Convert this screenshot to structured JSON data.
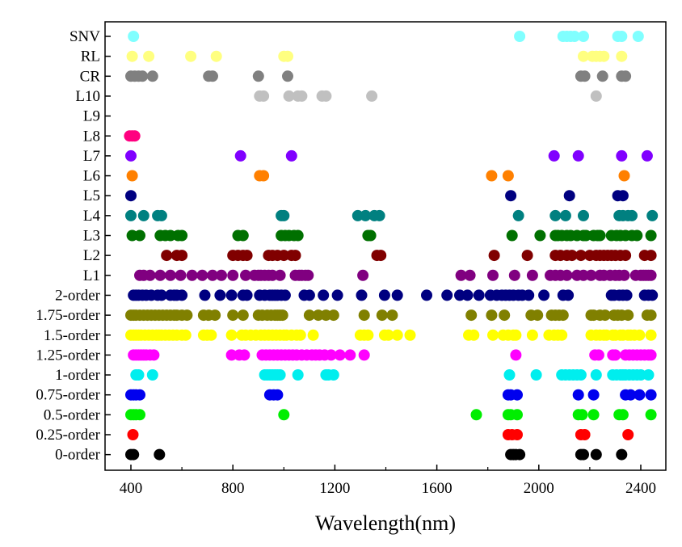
{
  "chart_data": {
    "type": "scatter",
    "title": "",
    "xlabel": "Wavelength(nm)",
    "ylabel": "",
    "xlim": [
      300,
      2460
    ],
    "xticks": [
      400,
      800,
      1200,
      1600,
      2000,
      2400
    ],
    "grid": false,
    "legend": "none",
    "categories": [
      "0-order",
      "0.25-order",
      "0.5-order",
      "0.75-order",
      "1-order",
      "1.25-order",
      "1.5-order",
      "1.75-order",
      "2-order",
      "L1",
      "L2",
      "L3",
      "L4",
      "L5",
      "L6",
      "L7",
      "L8",
      "L9",
      "L10",
      "CR",
      "RL",
      "SNV"
    ],
    "series": [
      {
        "category": "0-order",
        "color": "#000000",
        "x": [
          400,
          410,
          512,
          1890,
          1900,
          1910,
          1925,
          2165,
          2175,
          2225,
          2325
        ]
      },
      {
        "category": "0.25-order",
        "color": "#ff0000",
        "x": [
          408,
          1880,
          1895,
          1915,
          2165,
          2180,
          2350
        ]
      },
      {
        "category": "0.5-order",
        "color": "#00ee00",
        "x": [
          400,
          410,
          420,
          435,
          1000,
          1755,
          1880,
          1890,
          1915,
          2155,
          2170,
          2215,
          2315,
          2330,
          2440
        ]
      },
      {
        "category": "0.75-order",
        "color": "#0000ee",
        "x": [
          400,
          410,
          420,
          435,
          945,
          960,
          975,
          1880,
          1890,
          1915,
          2155,
          2215,
          2340,
          2360,
          2395,
          2440
        ]
      },
      {
        "category": "1-order",
        "color": "#00eeee",
        "x": [
          420,
          430,
          485,
          925,
          935,
          945,
          955,
          965,
          975,
          985,
          1055,
          1165,
          1175,
          1195,
          1885,
          1990,
          2090,
          2105,
          2120,
          2135,
          2150,
          2165,
          2225,
          2290,
          2305,
          2320,
          2330,
          2340,
          2355,
          2370,
          2385,
          2400,
          2430
        ]
      },
      {
        "category": "1.25-order",
        "color": "#ff00ff",
        "x": [
          410,
          420,
          430,
          440,
          450,
          460,
          475,
          490,
          795,
          825,
          845,
          915,
          930,
          945,
          960,
          975,
          990,
          1005,
          1020,
          1035,
          1050,
          1070,
          1090,
          1110,
          1125,
          1140,
          1160,
          1185,
          1220,
          1260,
          1315,
          1910,
          2220,
          2235,
          2290,
          2300,
          2340,
          2355,
          2370,
          2385,
          2400,
          2415,
          2430,
          2440
        ]
      },
      {
        "category": "1.5-order",
        "color": "#ffff00",
        "x": [
          400,
          410,
          420,
          430,
          440,
          455,
          470,
          485,
          500,
          510,
          520,
          535,
          550,
          565,
          580,
          600,
          615,
          685,
          700,
          715,
          795,
          835,
          850,
          870,
          890,
          910,
          925,
          940,
          955,
          970,
          985,
          1000,
          1010,
          1030,
          1050,
          1065,
          1115,
          1300,
          1315,
          1330,
          1395,
          1410,
          1445,
          1495,
          1725,
          1745,
          1820,
          1860,
          1880,
          1900,
          1910,
          1975,
          2040,
          2060,
          2075,
          2090,
          2205,
          2225,
          2240,
          2255,
          2265,
          2290,
          2300,
          2320,
          2330,
          2350,
          2360,
          2375,
          2395,
          2440
        ]
      },
      {
        "category": "1.75-order",
        "color": "#808000",
        "x": [
          400,
          410,
          420,
          435,
          450,
          465,
          480,
          495,
          510,
          525,
          540,
          555,
          570,
          580,
          600,
          620,
          685,
          705,
          730,
          800,
          840,
          900,
          915,
          935,
          950,
          965,
          975,
          985,
          995,
          1100,
          1135,
          1165,
          1195,
          1315,
          1385,
          1425,
          1735,
          1815,
          1865,
          1970,
          1995,
          2050,
          2065,
          2080,
          2095,
          2205,
          2215,
          2240,
          2260,
          2295,
          2310,
          2325,
          2350,
          2425,
          2440
        ]
      },
      {
        "category": "2-order",
        "color": "#000080",
        "x": [
          410,
          420,
          430,
          445,
          460,
          480,
          505,
          520,
          555,
          570,
          580,
          600,
          690,
          750,
          795,
          840,
          855,
          905,
          925,
          945,
          955,
          965,
          975,
          990,
          1005,
          1080,
          1100,
          1155,
          1210,
          1305,
          1395,
          1445,
          1560,
          1640,
          1690,
          1720,
          1765,
          1810,
          1835,
          1855,
          1870,
          1885,
          1900,
          1920,
          1935,
          1960,
          2020,
          2095,
          2115,
          2285,
          2295,
          2315,
          2330,
          2345,
          2415,
          2430,
          2445
        ]
      },
      {
        "category": "L1",
        "color": "#800080",
        "x": [
          435,
          450,
          475,
          515,
          555,
          595,
          640,
          680,
          720,
          755,
          800,
          850,
          885,
          900,
          910,
          925,
          940,
          955,
          985,
          1045,
          1060,
          1070,
          1085,
          1095,
          1310,
          1695,
          1730,
          1820,
          1905,
          1975,
          2045,
          2065,
          2085,
          2110,
          2150,
          2175,
          2205,
          2240,
          2255,
          2280,
          2300,
          2315,
          2335,
          2380,
          2400,
          2410,
          2420,
          2430,
          2440
        ]
      },
      {
        "category": "L2",
        "color": "#800000",
        "x": [
          540,
          580,
          600,
          800,
          820,
          840,
          855,
          940,
          955,
          975,
          1000,
          1030,
          1045,
          1365,
          1380,
          1825,
          1955,
          2065,
          2085,
          2110,
          2130,
          2165,
          2200,
          2225,
          2240,
          2255,
          2270,
          2285,
          2300,
          2320,
          2340,
          2415,
          2440
        ]
      },
      {
        "category": "L3",
        "color": "#007000",
        "x": [
          405,
          435,
          515,
          535,
          555,
          585,
          600,
          820,
          840,
          990,
          1005,
          1020,
          1040,
          1055,
          1330,
          1340,
          1895,
          2005,
          2065,
          2075,
          2090,
          2110,
          2125,
          2150,
          2175,
          2185,
          2215,
          2230,
          2240,
          2285,
          2305,
          2320,
          2340,
          2365,
          2385,
          2440
        ]
      },
      {
        "category": "L4",
        "color": "#008080",
        "x": [
          400,
          450,
          505,
          520,
          990,
          1000,
          1290,
          1320,
          1355,
          1375,
          1920,
          2065,
          2105,
          2175,
          2315,
          2330,
          2350,
          2365,
          2445
        ]
      },
      {
        "category": "L5",
        "color": "#000080",
        "x": [
          400,
          1890,
          2120,
          2310,
          2330
        ]
      },
      {
        "category": "L6",
        "color": "#ff8000",
        "x": [
          405,
          905,
          920,
          1815,
          1880,
          2335
        ]
      },
      {
        "category": "L7",
        "color": "#8000ff",
        "x": [
          400,
          830,
          1030,
          2060,
          2155,
          2325,
          2425
        ]
      },
      {
        "category": "L8",
        "color": "#ff0080",
        "x": [
          395,
          405,
          415
        ]
      },
      {
        "category": "L9",
        "color": "#ffffff",
        "x": []
      },
      {
        "category": "L10",
        "color": "#c0c0c0",
        "x": [
          905,
          920,
          1020,
          1055,
          1070,
          1150,
          1165,
          1345,
          2225
        ]
      },
      {
        "category": "CR",
        "color": "#808080",
        "x": [
          400,
          415,
          430,
          445,
          485,
          705,
          720,
          900,
          1015,
          2165,
          2180,
          2250,
          2325,
          2340
        ]
      },
      {
        "category": "RL",
        "color": "#ffff80",
        "x": [
          405,
          470,
          635,
          735,
          1000,
          1015,
          2175,
          2210,
          2225,
          2240,
          2255,
          2325
        ]
      },
      {
        "category": "SNV",
        "color": "#80ffff",
        "x": [
          410,
          1925,
          2095,
          2110,
          2125,
          2140,
          2175,
          2310,
          2325,
          2390
        ]
      }
    ]
  }
}
